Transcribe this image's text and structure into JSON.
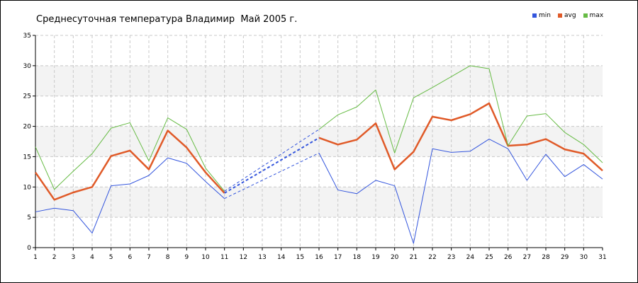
{
  "chart_data": {
    "type": "line",
    "title": "Среднесуточная температура Владимир  Май 2005 г.",
    "x": [
      1,
      2,
      3,
      4,
      5,
      6,
      7,
      8,
      9,
      10,
      11,
      12,
      13,
      14,
      15,
      16,
      17,
      18,
      19,
      20,
      21,
      22,
      23,
      24,
      25,
      26,
      27,
      28,
      29,
      30,
      31
    ],
    "xticks": [
      "1",
      "2",
      "3",
      "4",
      "5",
      "6",
      "7",
      "8",
      "9",
      "10",
      "11",
      "12",
      "13",
      "14",
      "15",
      "16",
      "17",
      "18",
      "19",
      "20",
      "21",
      "22",
      "23",
      "24",
      "25",
      "26",
      "27",
      "28",
      "29",
      "30",
      "31"
    ],
    "ylim": [
      0,
      35
    ],
    "yticks": [
      "0",
      "5",
      "10",
      "15",
      "20",
      "25",
      "30",
      "35"
    ],
    "grid": true,
    "legend_position": "top-right",
    "gap_interpolated_days": [
      11,
      16
    ],
    "series": [
      {
        "name": "min",
        "color": "#3355dd",
        "values": [
          5.9,
          6.5,
          6.1,
          2.4,
          10.2,
          10.5,
          11.9,
          14.8,
          13.9,
          10.9,
          8.1,
          null,
          null,
          null,
          null,
          15.6,
          9.5,
          8.9,
          11.1,
          10.2,
          0.7,
          16.3,
          15.7,
          15.9,
          17.9,
          16.3,
          11.1,
          15.4,
          11.7,
          13.7,
          11.3
        ]
      },
      {
        "name": "avg",
        "color": "#e05a28",
        "values": [
          12.4,
          7.9,
          9.1,
          10.0,
          15.1,
          16.0,
          12.9,
          19.3,
          16.5,
          12.4,
          9.0,
          null,
          null,
          null,
          null,
          18.1,
          17.0,
          17.8,
          20.5,
          12.9,
          15.8,
          21.6,
          21.0,
          22.0,
          23.8,
          16.8,
          17.0,
          17.9,
          16.2,
          15.5,
          12.7
        ]
      },
      {
        "name": "max",
        "color": "#66bb44",
        "values": [
          16.6,
          9.6,
          12.6,
          15.5,
          19.7,
          20.6,
          14.3,
          21.4,
          19.5,
          13.1,
          9.3,
          null,
          null,
          null,
          null,
          19.5,
          21.9,
          23.2,
          26.0,
          15.6,
          24.7,
          26.4,
          28.2,
          30.0,
          29.5,
          16.8,
          21.7,
          22.1,
          19.0,
          17.0,
          14.0
        ]
      }
    ]
  }
}
